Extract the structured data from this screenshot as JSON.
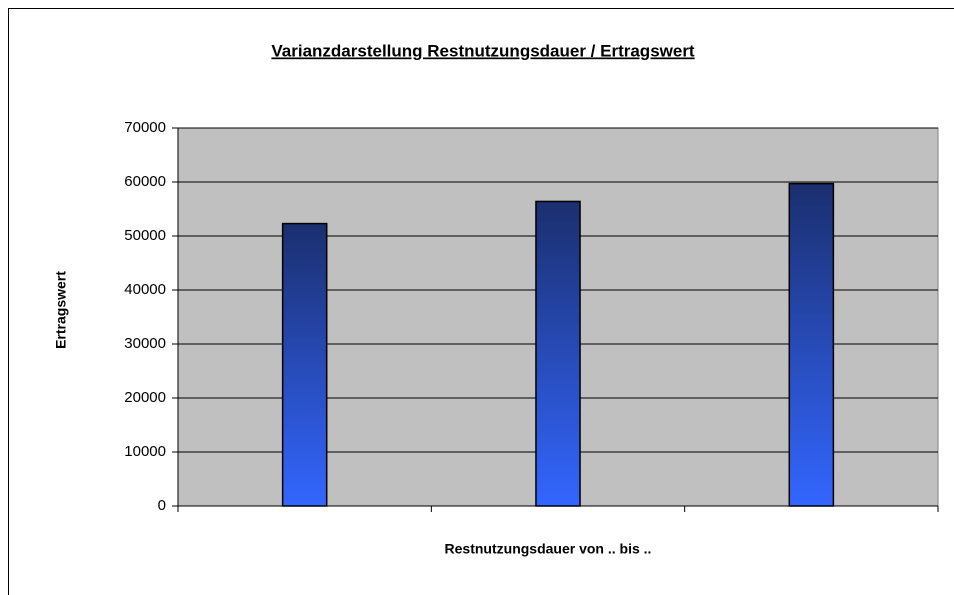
{
  "chart_data": {
    "type": "bar",
    "title": "Varianzdarstellung  Restnutzungsdauer / Ertragswert",
    "x_label": "Restnutzungsdauer  von .. bis ..",
    "y_label": "Ertragswert",
    "categories": [
      null,
      null,
      null
    ],
    "values": [
      52300,
      56400,
      59700
    ],
    "color": [
      "#1b2f6f",
      "#3366ff"
    ],
    "plot_background": "#c0c0c0",
    "ylim": [
      0,
      70000
    ],
    "yticks": [
      0,
      10000,
      20000,
      30000,
      40000,
      50000,
      60000,
      70000
    ],
    "grid": true
  }
}
